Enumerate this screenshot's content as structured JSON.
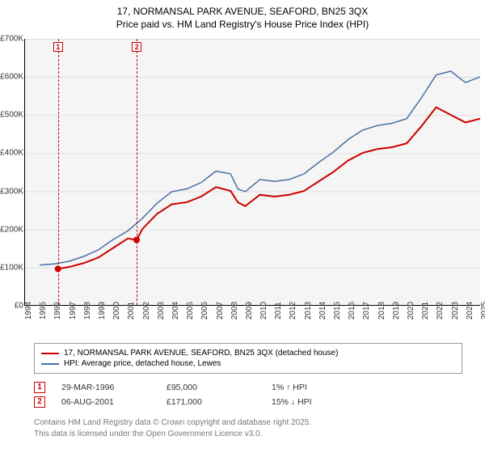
{
  "title": {
    "line1": "17, NORMANSAL PARK AVENUE, SEAFORD, BN25 3QX",
    "line2": "Price paid vs. HM Land Registry's House Price Index (HPI)"
  },
  "chart": {
    "type": "line",
    "background_color": "#f5f5f5",
    "grid_color": "#e0e0e0",
    "ylim": [
      0,
      700000
    ],
    "y_ticks": [
      "£0",
      "£100K",
      "£200K",
      "£300K",
      "£400K",
      "£500K",
      "£600K",
      "£700K"
    ],
    "x_ticks": [
      "1994",
      "1995",
      "1996",
      "1997",
      "1998",
      "1999",
      "2000",
      "2001",
      "2002",
      "2003",
      "2004",
      "2005",
      "2006",
      "2007",
      "2008",
      "2009",
      "2010",
      "2011",
      "2012",
      "2013",
      "2014",
      "2015",
      "2016",
      "2017",
      "2018",
      "2019",
      "2020",
      "2021",
      "2022",
      "2023",
      "2024",
      "2025"
    ],
    "series": [
      {
        "name": "17, NORMANSAL PARK AVENUE, SEAFORD, BN25 3QX (detached house)",
        "color": "#cc0000",
        "line_width": 2,
        "data": [
          [
            1996.24,
            95000
          ],
          [
            1997,
            100000
          ],
          [
            1998,
            110000
          ],
          [
            1999,
            125000
          ],
          [
            2000,
            150000
          ],
          [
            2001,
            175000
          ],
          [
            2001.6,
            171000
          ],
          [
            2002,
            200000
          ],
          [
            2003,
            240000
          ],
          [
            2004,
            265000
          ],
          [
            2005,
            270000
          ],
          [
            2006,
            285000
          ],
          [
            2007,
            310000
          ],
          [
            2008,
            300000
          ],
          [
            2008.5,
            270000
          ],
          [
            2009,
            260000
          ],
          [
            2010,
            290000
          ],
          [
            2011,
            285000
          ],
          [
            2012,
            290000
          ],
          [
            2013,
            300000
          ],
          [
            2014,
            325000
          ],
          [
            2015,
            350000
          ],
          [
            2016,
            380000
          ],
          [
            2017,
            400000
          ],
          [
            2018,
            410000
          ],
          [
            2019,
            415000
          ],
          [
            2020,
            425000
          ],
          [
            2021,
            470000
          ],
          [
            2022,
            520000
          ],
          [
            2023,
            500000
          ],
          [
            2024,
            480000
          ],
          [
            2025,
            490000
          ]
        ]
      },
      {
        "name": "HPI: Average price, detached house, Lewes",
        "color": "#4a6fa5",
        "line_width": 1.5,
        "data": [
          [
            1995,
            105000
          ],
          [
            1996,
            108000
          ],
          [
            1997,
            115000
          ],
          [
            1998,
            128000
          ],
          [
            1999,
            145000
          ],
          [
            2000,
            172000
          ],
          [
            2001,
            195000
          ],
          [
            2002,
            228000
          ],
          [
            2003,
            268000
          ],
          [
            2004,
            298000
          ],
          [
            2005,
            305000
          ],
          [
            2006,
            322000
          ],
          [
            2007,
            352000
          ],
          [
            2008,
            345000
          ],
          [
            2008.5,
            305000
          ],
          [
            2009,
            298000
          ],
          [
            2010,
            330000
          ],
          [
            2011,
            325000
          ],
          [
            2012,
            330000
          ],
          [
            2013,
            345000
          ],
          [
            2014,
            375000
          ],
          [
            2015,
            402000
          ],
          [
            2016,
            435000
          ],
          [
            2017,
            460000
          ],
          [
            2018,
            472000
          ],
          [
            2019,
            478000
          ],
          [
            2020,
            490000
          ],
          [
            2021,
            545000
          ],
          [
            2022,
            605000
          ],
          [
            2023,
            615000
          ],
          [
            2024,
            585000
          ],
          [
            2025,
            600000
          ]
        ]
      }
    ],
    "sale_markers": [
      {
        "num": "1",
        "year": 1996.24
      },
      {
        "num": "2",
        "year": 2001.6
      }
    ],
    "sale_dots": [
      {
        "year": 1996.24,
        "value": 95000
      },
      {
        "year": 2001.6,
        "value": 171000
      }
    ]
  },
  "legend": {
    "items": [
      {
        "color": "#cc0000",
        "label": "17, NORMANSAL PARK AVENUE, SEAFORD, BN25 3QX (detached house)"
      },
      {
        "color": "#4a6fa5",
        "label": "HPI: Average price, detached house, Lewes"
      }
    ]
  },
  "sales": [
    {
      "num": "1",
      "date": "29-MAR-1996",
      "price": "£95,000",
      "delta": "1% ↑ HPI"
    },
    {
      "num": "2",
      "date": "06-AUG-2001",
      "price": "£171,000",
      "delta": "15% ↓ HPI"
    }
  ],
  "attribution": {
    "line1": "Contains HM Land Registry data © Crown copyright and database right 2025.",
    "line2": "This data is licensed under the Open Government Licence v3.0."
  }
}
